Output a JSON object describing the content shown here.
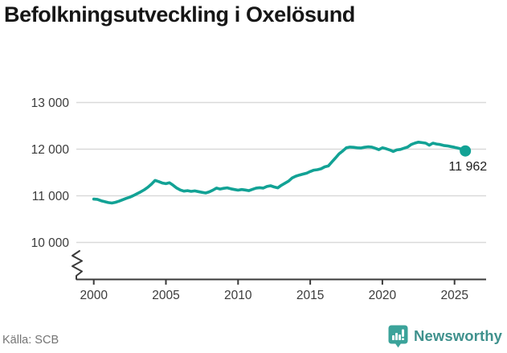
{
  "title": "Befolkningsutveckling i Oxelösund",
  "footer": {
    "source": "Källa: SCB",
    "brand": "Newsworthy"
  },
  "colors": {
    "line": "#12A295",
    "grid": "#D9D9D9",
    "axis": "#3A3A3A",
    "tick_text": "#3B3B3B",
    "title": "#161616",
    "source_text": "#757575",
    "annotation": "#1F1F1F",
    "brand_text": "#3F918D",
    "brand_icon": "#3BA39A",
    "background": "#FFFFFF"
  },
  "chart_data": {
    "type": "line",
    "title": "Befolkningsutveckling i Oxelösund",
    "xlabel": "",
    "ylabel": "",
    "grid": "horizontal",
    "legend": "none",
    "axis_break": true,
    "xlim": [
      1998.8,
      2027.2
    ],
    "ylim": [
      9200,
      13300
    ],
    "x_ticks": [
      {
        "value": 2000,
        "label": "2000"
      },
      {
        "value": 2005,
        "label": "2005"
      },
      {
        "value": 2010,
        "label": "2010"
      },
      {
        "value": 2015,
        "label": "2015"
      },
      {
        "value": 2020,
        "label": "2020"
      },
      {
        "value": 2025,
        "label": "2025"
      }
    ],
    "y_ticks": [
      {
        "value": 10000,
        "label": "10 000"
      },
      {
        "value": 11000,
        "label": "11 000"
      },
      {
        "value": 12000,
        "label": "12 000"
      },
      {
        "value": 13000,
        "label": "13 000"
      }
    ],
    "end_label": "11 962",
    "latest_value": 11962,
    "series": [
      {
        "name": "Befolkning",
        "x_start": 2000.0,
        "x_step": 0.25,
        "values": [
          10930,
          10925,
          10895,
          10875,
          10855,
          10845,
          10860,
          10885,
          10915,
          10945,
          10970,
          11005,
          11045,
          11085,
          11130,
          11185,
          11250,
          11330,
          11305,
          11275,
          11260,
          11280,
          11225,
          11165,
          11125,
          11100,
          11110,
          11095,
          11105,
          11090,
          11075,
          11060,
          11085,
          11120,
          11165,
          11145,
          11160,
          11170,
          11150,
          11135,
          11120,
          11135,
          11125,
          11110,
          11140,
          11165,
          11175,
          11165,
          11200,
          11215,
          11190,
          11170,
          11225,
          11270,
          11315,
          11385,
          11420,
          11445,
          11465,
          11485,
          11520,
          11550,
          11560,
          11580,
          11620,
          11640,
          11725,
          11810,
          11900,
          11960,
          12030,
          12045,
          12040,
          12030,
          12025,
          12040,
          12050,
          12045,
          12020,
          11990,
          12030,
          12010,
          11985,
          11950,
          11985,
          11995,
          12020,
          12045,
          12100,
          12130,
          12150,
          12140,
          12130,
          12085,
          12130,
          12110,
          12100,
          12080,
          12070,
          12055,
          12040,
          12020,
          12000,
          11962
        ]
      }
    ]
  }
}
